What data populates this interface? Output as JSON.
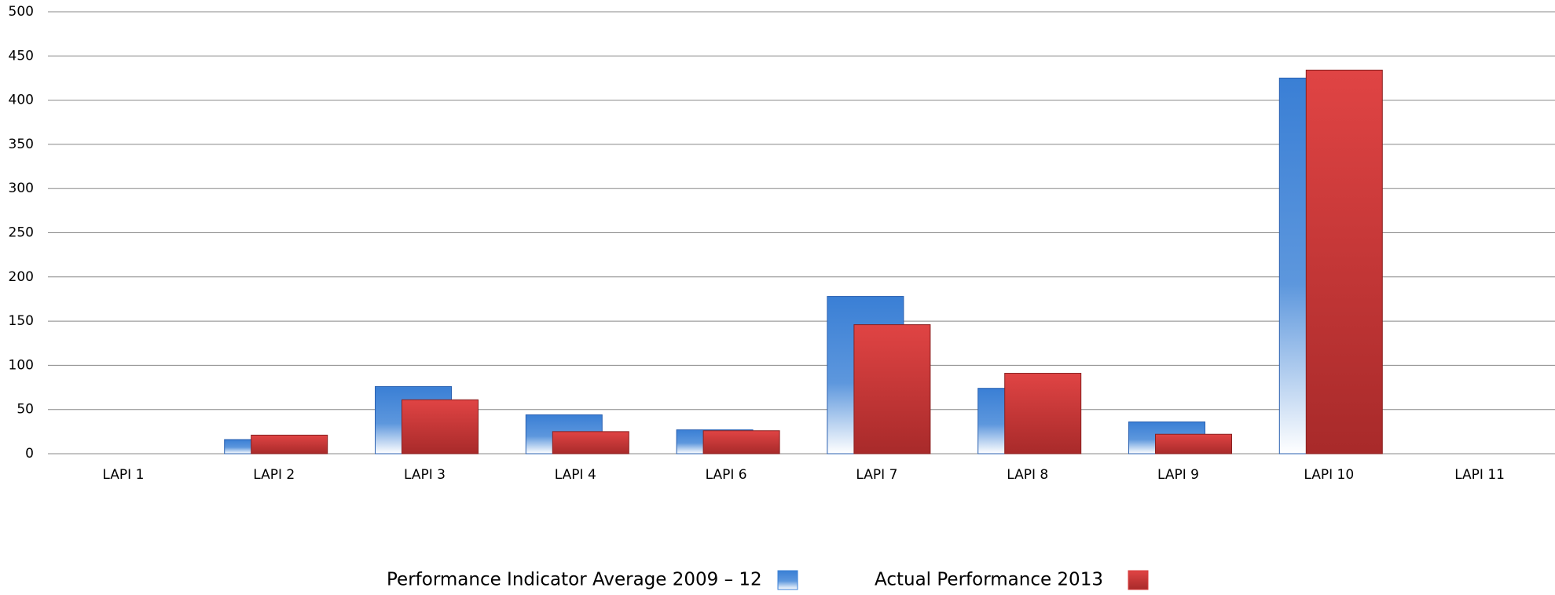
{
  "chart_data": {
    "type": "bar",
    "categories": [
      "LAPI 1",
      "LAPI 2",
      "LAPI 3",
      "LAPI 4",
      "LAPI 6",
      "LAPI 7",
      "LAPI 8",
      "LAPI 9",
      "LAPI 10",
      "LAPI 11"
    ],
    "series": [
      {
        "name": "Performance Indicator Average 2009 – 12",
        "color": "#3a7fd5",
        "values": [
          null,
          16,
          76,
          44,
          27,
          178,
          74,
          36,
          425,
          null
        ]
      },
      {
        "name": "Actual Performance 2013",
        "color": "#d83b3b",
        "values": [
          null,
          21,
          61,
          25,
          26,
          146,
          91,
          22,
          434,
          null
        ]
      }
    ],
    "ylim": [
      0,
      500
    ],
    "yticks": [
      0,
      50,
      100,
      150,
      200,
      250,
      300,
      350,
      400,
      450,
      500
    ],
    "grid": true,
    "legend": "bottom"
  }
}
